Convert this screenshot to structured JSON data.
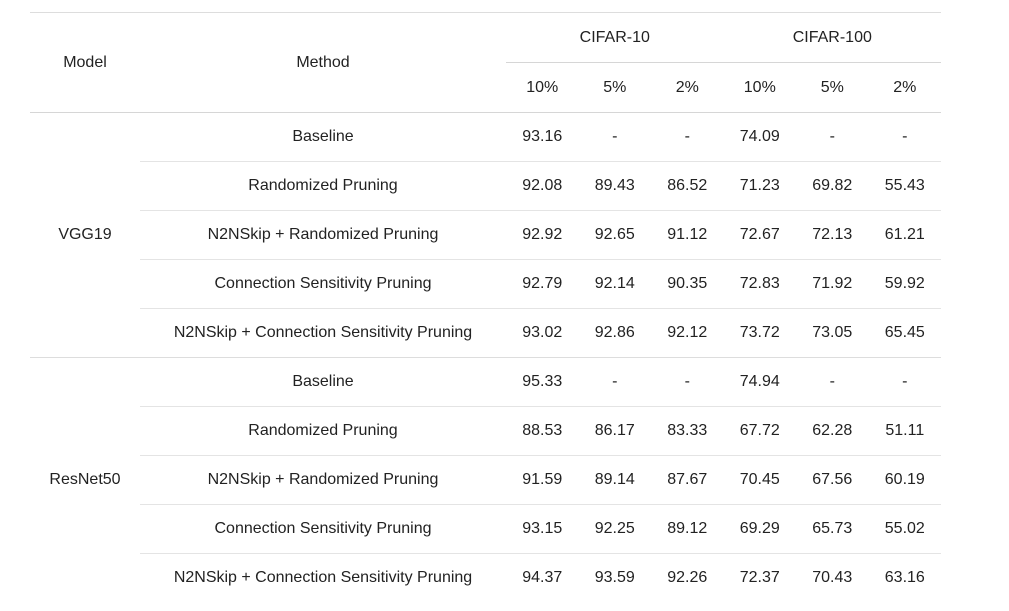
{
  "header": {
    "model": "Model",
    "method": "Method",
    "groups": [
      {
        "label": "CIFAR-10",
        "subs": [
          "10%",
          "5%",
          "2%"
        ]
      },
      {
        "label": "CIFAR-100",
        "subs": [
          "10%",
          "5%",
          "2%"
        ]
      }
    ]
  },
  "blocks": [
    {
      "model": "VGG19",
      "rows": [
        {
          "method": "Baseline",
          "method_bold": true,
          "values": [
            "93.16",
            "-",
            "-",
            "74.09",
            "-",
            "-"
          ],
          "values_bold": false
        },
        {
          "method": "Randomized Pruning",
          "method_bold": false,
          "values": [
            "92.08",
            "89.43",
            "86.52",
            "71.23",
            "69.82",
            "55.43"
          ],
          "values_bold": false
        },
        {
          "method": "N2NSkip + Randomized Pruning",
          "method_bold": false,
          "values": [
            "92.92",
            "92.65",
            "91.12",
            "72.67",
            "72.13",
            "61.21"
          ],
          "values_bold": true
        },
        {
          "method": "Connection Sensitivity Pruning",
          "method_bold": false,
          "values": [
            "92.79",
            "92.14",
            "90.35",
            "72.83",
            "71.92",
            "59.92"
          ],
          "values_bold": false
        },
        {
          "method": "N2NSkip + Connection Sensitivity Pruning",
          "method_bold": false,
          "values": [
            "93.02",
            "92.86",
            "92.12",
            "73.72",
            "73.05",
            "65.45"
          ],
          "values_bold": true
        }
      ]
    },
    {
      "model": "ResNet50",
      "rows": [
        {
          "method": "Baseline",
          "method_bold": true,
          "values": [
            "95.33",
            "-",
            "-",
            "74.94",
            "-",
            "-"
          ],
          "values_bold": false
        },
        {
          "method": "Randomized Pruning",
          "method_bold": false,
          "values": [
            "88.53",
            "86.17",
            "83.33",
            "67.72",
            "62.28",
            "51.11"
          ],
          "values_bold": false
        },
        {
          "method": "N2NSkip + Randomized Pruning",
          "method_bold": false,
          "values": [
            "91.59",
            "89.14",
            "87.67",
            "70.45",
            "67.56",
            "60.19"
          ],
          "values_bold": true
        },
        {
          "method": "Connection Sensitivity Pruning",
          "method_bold": false,
          "values": [
            "93.15",
            "92.25",
            "89.12",
            "69.29",
            "65.73",
            "55.02"
          ],
          "values_bold": false
        },
        {
          "method": "N2NSkip + Connection Sensitivity Pruning",
          "method_bold": false,
          "values": [
            "94.37",
            "93.59",
            "92.26",
            "72.37",
            "70.43",
            "63.16"
          ],
          "values_bold": true
        }
      ]
    }
  ]
}
